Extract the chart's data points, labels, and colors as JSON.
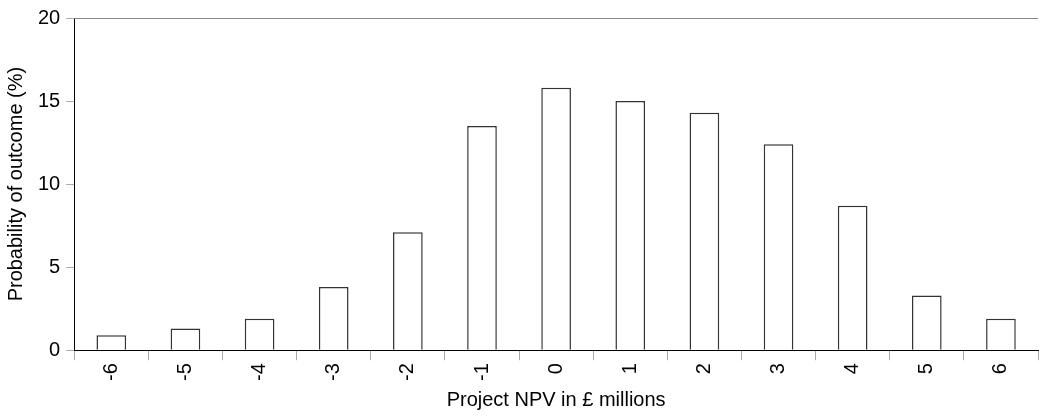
{
  "chart_data": {
    "type": "bar",
    "xlabel": "Project NPV in £ millions",
    "ylabel": "Probability of outcome (%)",
    "categories": [
      "-6",
      "-5",
      "-4",
      "-3",
      "-2",
      "-1",
      "0",
      "1",
      "2",
      "3",
      "4",
      "5",
      "6"
    ],
    "values": [
      0.9,
      1.3,
      1.9,
      3.8,
      7.1,
      13.5,
      15.8,
      15.0,
      14.3,
      12.4,
      8.7,
      3.3,
      1.9
    ],
    "color": "#ffffff",
    "ylim": [
      0,
      20
    ],
    "yticks": [
      0,
      5,
      10,
      15,
      20
    ],
    "grid": false,
    "legend": false
  }
}
